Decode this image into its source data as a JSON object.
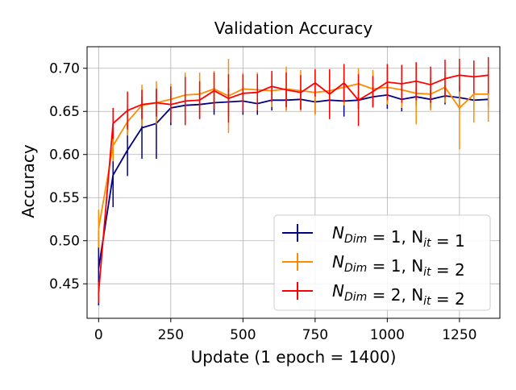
{
  "chart_data": {
    "type": "line",
    "title": "Validation Accuracy",
    "xlabel": "Update (1 epoch = 1400)",
    "ylabel": "Accuracy",
    "xlim": [
      -40,
      1390
    ],
    "ylim": [
      0.41,
      0.725
    ],
    "xticks": [
      0,
      250,
      500,
      750,
      1000,
      1250
    ],
    "yticks": [
      0.45,
      0.5,
      0.55,
      0.6,
      0.65,
      0.7
    ],
    "grid": true,
    "legend_position": "lower-right",
    "x": [
      0,
      50,
      100,
      150,
      200,
      250,
      300,
      350,
      400,
      450,
      500,
      550,
      600,
      650,
      700,
      750,
      800,
      850,
      900,
      950,
      1000,
      1050,
      1100,
      1150,
      1200,
      1250,
      1300,
      1350
    ],
    "series": [
      {
        "name": "N_Dim = 1, N_it = 1",
        "legend_base": "N",
        "legend_sub1": "Dim",
        "legend_mid": " = 1, N",
        "legend_sub2": "it",
        "legend_end": " = 1",
        "color": "#000080",
        "values": [
          0.468,
          0.576,
          0.605,
          0.631,
          0.636,
          0.654,
          0.657,
          0.658,
          0.66,
          0.661,
          0.662,
          0.659,
          0.663,
          0.663,
          0.664,
          0.661,
          0.663,
          0.662,
          0.663,
          0.667,
          0.669,
          0.664,
          0.667,
          0.664,
          0.668,
          0.666,
          0.663,
          0.664
        ],
        "errors": [
          0.043,
          0.037,
          0.03,
          0.036,
          0.041,
          0.02,
          0.016,
          0.016,
          0.014,
          0.016,
          0.016,
          0.013,
          0.012,
          0.011,
          0.012,
          0.014,
          0.01,
          0.018,
          0.01,
          0.012,
          0.016,
          0.014,
          0.01,
          0.01,
          0.01,
          0.014,
          0.01,
          0.01
        ]
      },
      {
        "name": "N_Dim = 1, N_it = 2",
        "legend_base": "N",
        "legend_sub1": "Dim",
        "legend_mid": " = 1, N",
        "legend_sub2": "it",
        "legend_end": " = 2",
        "color": "#ff8c00",
        "values": [
          0.514,
          0.61,
          0.638,
          0.657,
          0.66,
          0.664,
          0.669,
          0.67,
          0.676,
          0.668,
          0.676,
          0.675,
          0.674,
          0.676,
          0.674,
          0.672,
          0.674,
          0.678,
          0.682,
          0.676,
          0.678,
          0.675,
          0.671,
          0.67,
          0.678,
          0.654,
          0.67,
          0.67
        ],
        "errors": [
          0.022,
          0.018,
          0.016,
          0.024,
          0.025,
          0.018,
          0.026,
          0.025,
          0.021,
          0.043,
          0.019,
          0.02,
          0.019,
          0.026,
          0.024,
          0.026,
          0.02,
          0.021,
          0.018,
          0.022,
          0.02,
          0.021,
          0.036,
          0.019,
          0.018,
          0.048,
          0.033,
          0.032
        ]
      },
      {
        "name": "N_Dim = 2, N_it = 2",
        "legend_base": "N",
        "legend_sub1": "Dim",
        "legend_mid": " = 2, N",
        "legend_sub2": "it",
        "legend_end": " = 2",
        "color": "#ff0000",
        "values": [
          0.44,
          0.636,
          0.651,
          0.658,
          0.66,
          0.658,
          0.662,
          0.663,
          0.674,
          0.665,
          0.671,
          0.672,
          0.679,
          0.675,
          0.672,
          0.683,
          0.67,
          0.683,
          0.663,
          0.673,
          0.684,
          0.682,
          0.685,
          0.681,
          0.688,
          0.692,
          0.69,
          0.692
        ],
        "errors": [
          0.012,
          0.018,
          0.022,
          0.017,
          0.016,
          0.021,
          0.028,
          0.022,
          0.021,
          0.028,
          0.022,
          0.021,
          0.018,
          0.02,
          0.02,
          0.016,
          0.029,
          0.022,
          0.03,
          0.018,
          0.021,
          0.022,
          0.022,
          0.021,
          0.022,
          0.019,
          0.019,
          0.021
        ]
      }
    ]
  }
}
